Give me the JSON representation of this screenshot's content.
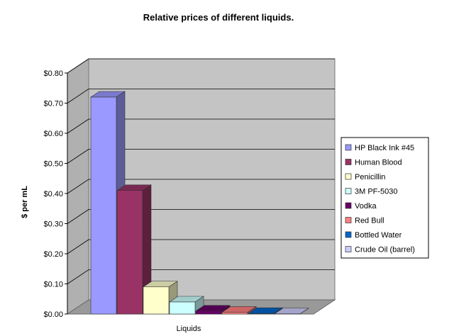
{
  "chart_data": {
    "type": "bar",
    "title": "Relative prices of different liquids.",
    "xlabel": "Liquids",
    "ylabel": "$ per mL",
    "ylim": [
      0,
      0.8
    ],
    "ytick_values": [
      0,
      0.1,
      0.2,
      0.3,
      0.4,
      0.5,
      0.6,
      0.7,
      0.8
    ],
    "ytick_labels": [
      "$0.00",
      "$0.10",
      "$0.20",
      "$0.30",
      "$0.40",
      "$0.50",
      "$0.60",
      "$0.70",
      "$0.80"
    ],
    "grid": true,
    "legend_position": "right",
    "series": [
      {
        "name": "HP Black Ink #45",
        "value": 0.72,
        "color": "#9999ff"
      },
      {
        "name": "Human Blood",
        "value": 0.41,
        "color": "#993366"
      },
      {
        "name": "Penicillin",
        "value": 0.09,
        "color": "#ffffcc"
      },
      {
        "name": "3M PF-5030",
        "value": 0.04,
        "color": "#ccffff"
      },
      {
        "name": "Vodka",
        "value": 0.01,
        "color": "#660066"
      },
      {
        "name": "Red Bull",
        "value": 0.006,
        "color": "#ff8080"
      },
      {
        "name": "Bottled Water",
        "value": 0.002,
        "color": "#0066cc"
      },
      {
        "name": "Crude Oil (barrel)",
        "value": 0.0006,
        "color": "#ccccff"
      }
    ]
  }
}
